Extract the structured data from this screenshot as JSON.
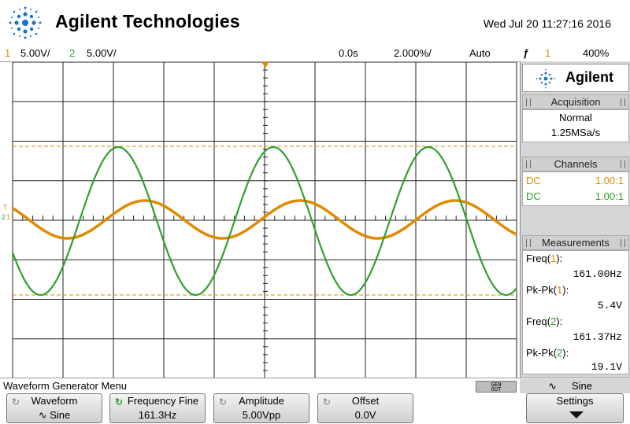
{
  "header": {
    "brand": "Agilent Technologies",
    "datetime": "Wed Jul 20 11:27:16 2016"
  },
  "status": {
    "ch1_num": "1",
    "ch1_scale": "5.00V/",
    "ch2_num": "2",
    "ch2_scale": "5.00V/",
    "time_delay": "0.0s",
    "time_scale": "2.000%/",
    "trigger_mode": "Auto",
    "trigger_symbol": "ƒ",
    "trigger_source": "1",
    "trigger_level": "400%"
  },
  "scope": {
    "trigger_marker_label": "T",
    "ch1_ground_marker": "1",
    "ch2_ground_marker": "2",
    "colors": {
      "ch1": "#e08a00",
      "ch2": "#2fa02f",
      "grid": "#222222",
      "cursor": "#e08a00"
    }
  },
  "panel": {
    "brand": "Agilent",
    "acquisition": {
      "title": "Acquisition",
      "mode": "Normal",
      "rate": "1.25MSa/s"
    },
    "channels": {
      "title": "Channels",
      "rows": [
        {
          "coupling": "DC",
          "probe": "1.00:1",
          "color": "#e08a00"
        },
        {
          "coupling": "DC",
          "probe": "1.00:1",
          "color": "#2fa02f"
        }
      ]
    },
    "measurements": {
      "title": "Measurements",
      "items": [
        {
          "label_pre": "Freq(",
          "ch": "1",
          "label_post": "):",
          "value": "161.00Hz",
          "ch_color": "#e08a00"
        },
        {
          "label_pre": "Pk-Pk(",
          "ch": "1",
          "label_post": "):",
          "value": "5.4V",
          "ch_color": "#e08a00"
        },
        {
          "label_pre": "Freq(",
          "ch": "2",
          "label_post": "):",
          "value": "161.37Hz",
          "ch_color": "#2fa02f"
        },
        {
          "label_pre": "Pk-Pk(",
          "ch": "2",
          "label_post": "):",
          "value": "19.1V",
          "ch_color": "#2fa02f"
        }
      ]
    }
  },
  "bottom": {
    "menu_title": "Waveform Generator Menu",
    "gen_out_line1": "GEN",
    "gen_out_line2": "OUT",
    "wave_symbol": "∿",
    "wave_name": "Sine",
    "softkeys": [
      {
        "label": "Waveform",
        "value": "∿ Sine",
        "icon": "↻"
      },
      {
        "label": "Frequency Fine",
        "value": "161.3Hz",
        "icon": "↻"
      },
      {
        "label": "Amplitude",
        "value": "5.00Vpp",
        "icon": "↻"
      },
      {
        "label": "Offset",
        "value": "0.0V",
        "icon": "↻"
      }
    ],
    "settings_label": "Settings"
  }
}
